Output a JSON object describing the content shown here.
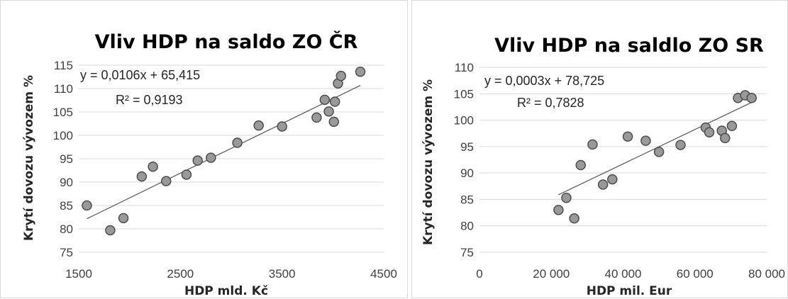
{
  "chart_data": [
    {
      "type": "scatter",
      "title": "Vliv HDP  na saldo ZO ČR",
      "xlabel": "HDP mld. Kč",
      "ylabel": "Krytí dovozu vývozem %",
      "xlim": [
        1500,
        4500
      ],
      "ylim": [
        75,
        115
      ],
      "xticks": [
        1500,
        2500,
        3500,
        4500
      ],
      "xtick_labels": [
        "1500",
        "2500",
        "3500",
        "4500"
      ],
      "yticks": [
        75,
        80,
        85,
        90,
        95,
        100,
        105,
        110,
        115
      ],
      "ytick_labels": [
        "75",
        "80",
        "85",
        "90",
        "95",
        "100",
        "105",
        "110",
        "115"
      ],
      "grid": "horizontal",
      "equation": "y = 0,0106x + 65,415",
      "r_squared": "R² = 0,9193",
      "trendline": {
        "slope": 0.0106,
        "intercept": 65.415,
        "x_range": [
          1580,
          4270
        ]
      },
      "points": [
        {
          "x": 1580,
          "y": 85.0
        },
        {
          "x": 1810,
          "y": 79.7
        },
        {
          "x": 1940,
          "y": 82.3
        },
        {
          "x": 2120,
          "y": 91.2
        },
        {
          "x": 2230,
          "y": 93.3
        },
        {
          "x": 2360,
          "y": 90.2
        },
        {
          "x": 2560,
          "y": 91.6
        },
        {
          "x": 2670,
          "y": 94.6
        },
        {
          "x": 2800,
          "y": 95.2
        },
        {
          "x": 3060,
          "y": 98.4
        },
        {
          "x": 3270,
          "y": 102.1
        },
        {
          "x": 3500,
          "y": 101.9
        },
        {
          "x": 3840,
          "y": 103.8
        },
        {
          "x": 3920,
          "y": 107.6
        },
        {
          "x": 3960,
          "y": 105.1
        },
        {
          "x": 4010,
          "y": 102.9
        },
        {
          "x": 4020,
          "y": 107.2
        },
        {
          "x": 4050,
          "y": 111.1
        },
        {
          "x": 4080,
          "y": 112.7
        },
        {
          "x": 4270,
          "y": 113.6
        }
      ]
    },
    {
      "type": "scatter",
      "title": "Vliv HDP  na saldlo ZO SR",
      "xlabel": "HDP mil. Eur",
      "ylabel": "Krytí dovozu vývozem %",
      "xlim": [
        0,
        80000
      ],
      "ylim": [
        75,
        110
      ],
      "xticks": [
        0,
        20000,
        40000,
        60000,
        80000
      ],
      "xtick_labels": [
        "0",
        "20 000",
        "40 000",
        "60 000",
        "80 000"
      ],
      "yticks": [
        75,
        80,
        85,
        90,
        95,
        100,
        105,
        110
      ],
      "ytick_labels": [
        "75",
        "80",
        "85",
        "90",
        "95",
        "100",
        "105",
        "110"
      ],
      "grid": "horizontal",
      "equation": "y = 0,0003x + 78,725",
      "r_squared": "R² = 0,7828",
      "trendline": {
        "slope": 0.000325,
        "intercept": 78.725,
        "x_range": [
          22000,
          76000
        ]
      },
      "points": [
        {
          "x": 22000,
          "y": 83.0
        },
        {
          "x": 24200,
          "y": 85.3
        },
        {
          "x": 26400,
          "y": 81.4
        },
        {
          "x": 28200,
          "y": 91.5
        },
        {
          "x": 31500,
          "y": 95.4
        },
        {
          "x": 34400,
          "y": 87.8
        },
        {
          "x": 37000,
          "y": 88.8
        },
        {
          "x": 41300,
          "y": 96.9
        },
        {
          "x": 46300,
          "y": 96.1
        },
        {
          "x": 50000,
          "y": 94.0
        },
        {
          "x": 56000,
          "y": 95.3
        },
        {
          "x": 63000,
          "y": 98.6
        },
        {
          "x": 64000,
          "y": 97.7
        },
        {
          "x": 67500,
          "y": 98.0
        },
        {
          "x": 68400,
          "y": 96.6
        },
        {
          "x": 70300,
          "y": 98.9
        },
        {
          "x": 72000,
          "y": 104.2
        },
        {
          "x": 74000,
          "y": 104.7
        },
        {
          "x": 75800,
          "y": 104.2
        }
      ]
    }
  ]
}
